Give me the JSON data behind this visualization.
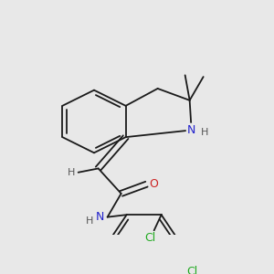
{
  "background_color": "#e8e8e8",
  "line_color": "#1a1a1a",
  "atom_colors": {
    "N": "#2222cc",
    "O": "#cc2222",
    "Cl": "#22aa22",
    "H": "#555555"
  },
  "font_size": 8,
  "fig_size": [
    3.0,
    3.0
  ],
  "dpi": 100
}
